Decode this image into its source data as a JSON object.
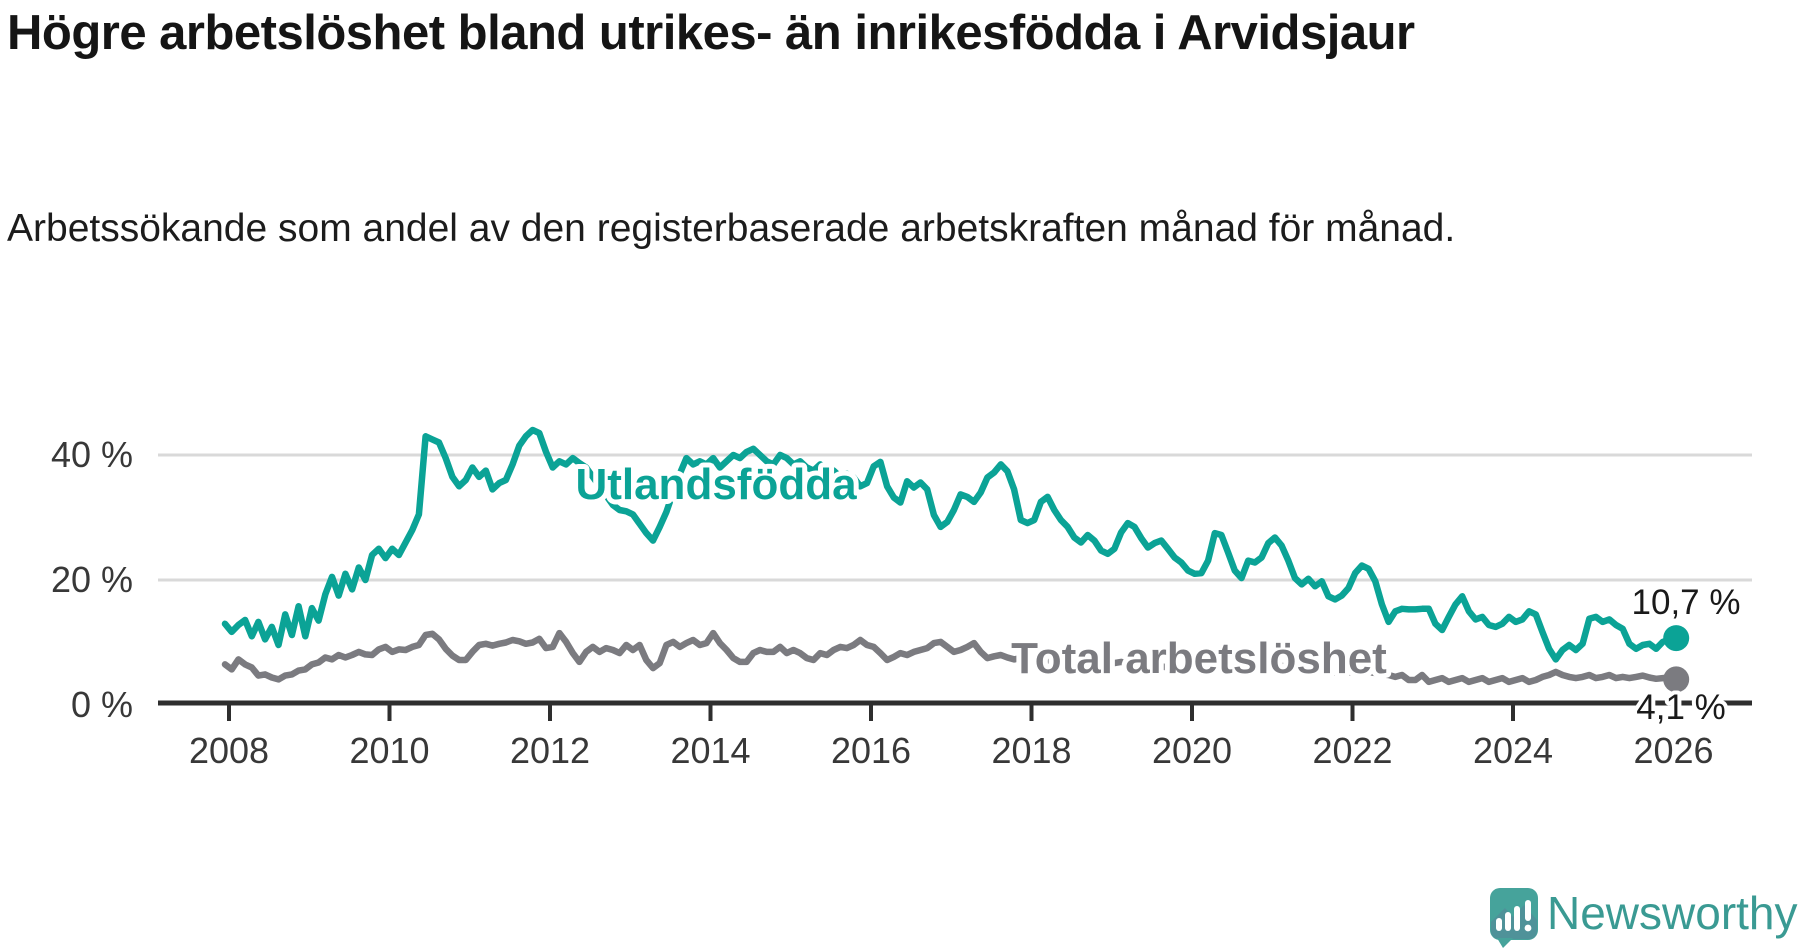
{
  "header": {
    "title": "Högre arbetslöshet bland utrikes- än inrikesfödda i Arvidsjaur",
    "subtitle": "Arbetssökande som andel av den registerbaserade arbetskraften månad för månad."
  },
  "colors": {
    "series_foreign": "#0ba396",
    "series_total": "#7b7b80",
    "axis": "#2e2e2e",
    "gridline": "#d9d9d9",
    "tick_text": "#383838",
    "end_label_text": "#1a1a1a",
    "logo_bubble": "#46a39b",
    "logo_text": "#3a9a93"
  },
  "chart_data": {
    "type": "line",
    "title": "Högre arbetslöshet bland utrikes- än inrikesfödda i Arvidsjaur",
    "xlabel": "",
    "ylabel": "",
    "x_start": "2008-01",
    "x_end": "2026-02",
    "interval": "monthly",
    "ylim": [
      0,
      46
    ],
    "grid": "horizontal",
    "legend_position": "inline-labels",
    "x_ticks": [
      {
        "label": "2008",
        "year": 2008
      },
      {
        "label": "2010",
        "year": 2010
      },
      {
        "label": "2012",
        "year": 2012
      },
      {
        "label": "2014",
        "year": 2014
      },
      {
        "label": "2016",
        "year": 2016
      },
      {
        "label": "2018",
        "year": 2018
      },
      {
        "label": "2020",
        "year": 2020
      },
      {
        "label": "2022",
        "year": 2022
      },
      {
        "label": "2024",
        "year": 2024
      },
      {
        "label": "2026",
        "year": 2026
      }
    ],
    "y_ticks": [
      {
        "label": "0 %",
        "value": 0
      },
      {
        "label": "20 %",
        "value": 20
      },
      {
        "label": "40 %",
        "value": 40
      }
    ],
    "series": [
      {
        "name": "Utlandsfödda",
        "color": "#0ba396",
        "end_label": "10,7 %",
        "values": [
          13.0,
          11.7,
          12.8,
          13.6,
          11.0,
          13.3,
          10.5,
          12.5,
          9.6,
          14.5,
          11.2,
          15.8,
          11.0,
          15.5,
          13.5,
          17.7,
          20.5,
          17.5,
          21.0,
          18.5,
          22.0,
          20.0,
          24.0,
          25.0,
          23.5,
          25.0,
          24.0,
          26.0,
          28.0,
          30.5,
          43.0,
          42.5,
          42.0,
          39.5,
          36.5,
          35.0,
          36.0,
          38.0,
          36.5,
          37.5,
          34.5,
          35.5,
          36.0,
          38.5,
          41.5,
          43.0,
          44.0,
          43.5,
          40.5,
          38.0,
          39.0,
          38.5,
          39.5,
          38.7,
          38.0,
          36.5,
          35.0,
          33.5,
          32.0,
          31.2,
          31.0,
          30.5,
          29.0,
          27.5,
          26.3,
          28.5,
          30.9,
          34.0,
          37.0,
          39.5,
          38.5,
          39.0,
          38.5,
          39.5,
          38.0,
          39.0,
          40.0,
          39.5,
          40.5,
          41.0,
          40.0,
          39.0,
          38.5,
          40.0,
          39.5,
          38.5,
          39.0,
          38.0,
          37.5,
          38.5,
          37.0,
          37.5,
          36.5,
          37.0,
          36.4,
          35.0,
          35.5,
          38.2,
          38.9,
          35.0,
          33.2,
          32.4,
          35.8,
          34.8,
          35.6,
          34.5,
          30.4,
          28.5,
          29.3,
          31.2,
          33.7,
          33.3,
          32.5,
          34.0,
          36.4,
          37.2,
          38.5,
          37.4,
          34.5,
          29.6,
          29.1,
          29.6,
          32.5,
          33.3,
          31.2,
          29.6,
          28.5,
          26.8,
          26.0,
          27.2,
          26.3,
          24.7,
          24.2,
          25.0,
          27.6,
          29.1,
          28.5,
          26.7,
          25.2,
          25.9,
          26.3,
          25.0,
          23.6,
          22.8,
          21.5,
          21.0,
          21.1,
          23.1,
          27.5,
          27.2,
          24.4,
          21.5,
          20.3,
          23.1,
          22.8,
          23.6,
          25.9,
          26.8,
          25.5,
          23.1,
          20.3,
          19.3,
          20.2,
          19.0,
          19.8,
          17.4,
          16.9,
          17.5,
          18.7,
          21.1,
          22.3,
          21.8,
          19.8,
          16.1,
          13.3,
          15.0,
          15.4,
          15.3,
          15.3,
          15.4,
          15.4,
          13.0,
          12.0,
          14.1,
          16.1,
          17.4,
          15.0,
          13.7,
          14.1,
          12.8,
          12.5,
          13.0,
          14.1,
          13.3,
          13.7,
          15.0,
          14.5,
          11.7,
          9.0,
          7.3,
          8.8,
          9.6,
          8.8,
          9.8,
          13.8,
          14.1,
          13.3,
          13.7,
          12.8,
          12.2,
          9.8,
          9.0,
          9.6,
          9.8,
          9.0,
          10.1,
          10.4,
          10.7
        ]
      },
      {
        "name": "Total arbetslöshet",
        "color": "#7b7b80",
        "end_label": "4,1 %",
        "values": [
          6.5,
          5.7,
          7.3,
          6.5,
          6.0,
          4.7,
          4.9,
          4.4,
          4.1,
          4.7,
          4.9,
          5.5,
          5.7,
          6.5,
          6.8,
          7.6,
          7.3,
          8.0,
          7.6,
          8.0,
          8.5,
          8.1,
          8.0,
          8.9,
          9.3,
          8.5,
          8.9,
          8.8,
          9.3,
          9.6,
          11.2,
          11.4,
          10.5,
          9.0,
          7.9,
          7.2,
          7.2,
          8.5,
          9.6,
          9.8,
          9.5,
          9.8,
          10.0,
          10.4,
          10.2,
          9.8,
          10.0,
          10.6,
          9.1,
          9.3,
          11.5,
          10.1,
          8.3,
          6.9,
          8.5,
          9.3,
          8.5,
          9.1,
          8.8,
          8.3,
          9.6,
          8.8,
          9.6,
          7.2,
          5.9,
          6.7,
          9.6,
          10.1,
          9.3,
          9.9,
          10.4,
          9.6,
          9.9,
          11.5,
          9.9,
          8.8,
          7.5,
          6.9,
          6.9,
          8.3,
          8.8,
          8.5,
          8.5,
          9.3,
          8.3,
          8.8,
          8.3,
          7.5,
          7.2,
          8.3,
          8.0,
          8.8,
          9.3,
          9.1,
          9.6,
          10.4,
          9.6,
          9.3,
          8.3,
          7.2,
          7.7,
          8.3,
          8.0,
          8.5,
          8.8,
          9.1,
          9.9,
          10.1,
          9.3,
          8.5,
          8.8,
          9.3,
          9.9,
          8.5,
          7.5,
          7.8,
          8.0,
          7.6,
          7.3,
          7.5,
          7.2,
          7.4,
          7.6,
          7.2,
          6.8,
          6.5,
          6.7,
          6.9,
          6.6,
          6.4,
          6.6,
          6.8,
          6.5,
          6.7,
          6.9,
          6.6,
          6.3,
          6.1,
          6.3,
          6.5,
          6.2,
          6.0,
          6.2,
          6.4,
          6.3,
          6.5,
          6.9,
          7.2,
          7.0,
          6.8,
          6.6,
          6.4,
          6.2,
          6.3,
          6.1,
          6.0,
          5.9,
          6.1,
          6.3,
          6.0,
          5.7,
          5.5,
          5.6,
          5.4,
          5.5,
          5.3,
          5.2,
          5.3,
          5.2,
          5.4,
          5.5,
          5.3,
          5.1,
          4.9,
          4.8,
          4.5,
          4.8,
          4.0,
          4.0,
          4.8,
          3.7,
          4.0,
          4.3,
          3.7,
          4.0,
          4.3,
          3.7,
          4.0,
          4.3,
          3.7,
          4.0,
          4.3,
          3.7,
          4.0,
          4.3,
          3.7,
          4.0,
          4.5,
          4.8,
          5.3,
          4.8,
          4.5,
          4.3,
          4.5,
          4.8,
          4.3,
          4.5,
          4.8,
          4.3,
          4.5,
          4.3,
          4.5,
          4.7,
          4.4,
          4.2,
          4.3,
          4.4,
          4.1
        ]
      }
    ]
  },
  "branding": {
    "logo_text": "Newsworthy"
  }
}
